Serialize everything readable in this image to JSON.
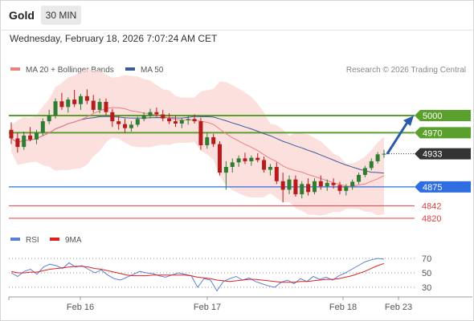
{
  "header": {
    "instrument": "Gold",
    "timeframe": "30 MIN"
  },
  "timestamp": "Wednesday, February 18, 2026 7:07:24 AM CET",
  "legend": {
    "ma20": "MA 20 + Bollinger Bands",
    "ma50": "MA 50",
    "ma20_color": "#f07f7f",
    "ma50_color": "#3a5a99",
    "copyright": "Research © 2026 Trading Central"
  },
  "rsi_legend": {
    "rsi": "RSI",
    "ma9": "9MA",
    "rsi_color": "#5b7fd6",
    "ma9_color": "#e02020"
  },
  "colors": {
    "green": "#5aa02c",
    "blue": "#2f6de0",
    "red": "#e04040",
    "dark": "#333333",
    "candle_up": "#2e7d32",
    "candle_down": "#b71c1c"
  },
  "chart_data": {
    "type": "candlestick",
    "price_axis": {
      "min": 4800,
      "max": 5070
    },
    "levels": [
      {
        "label": "5000",
        "value": 5000,
        "kind": "resistance",
        "color": "#5aa02c"
      },
      {
        "label": "4970",
        "value": 4970,
        "kind": "resistance",
        "color": "#5aa02c"
      },
      {
        "label": "4933",
        "value": 4933,
        "kind": "last",
        "color": "#333333"
      },
      {
        "label": "4875",
        "value": 4875,
        "kind": "pivot",
        "color": "#2f6de0"
      },
      {
        "label": "4842",
        "value": 4842,
        "kind": "support",
        "color": "#e04040"
      },
      {
        "label": "4820",
        "value": 4820,
        "kind": "support",
        "color": "#e04040"
      }
    ],
    "forecast_arrow": {
      "from": 4933,
      "to": 5000
    },
    "x_labels": [
      "Feb 16",
      "Feb 17",
      "Feb 18",
      "Feb 23"
    ],
    "candles": [
      {
        "o": 4975,
        "h": 4988,
        "l": 4950,
        "c": 4960
      },
      {
        "o": 4960,
        "h": 4970,
        "l": 4935,
        "c": 4945
      },
      {
        "o": 4945,
        "h": 4972,
        "l": 4940,
        "c": 4965
      },
      {
        "o": 4965,
        "h": 4980,
        "l": 4955,
        "c": 4958
      },
      {
        "o": 4958,
        "h": 4975,
        "l": 4950,
        "c": 4970
      },
      {
        "o": 4970,
        "h": 4995,
        "l": 4965,
        "c": 4990
      },
      {
        "o": 4990,
        "h": 5010,
        "l": 4985,
        "c": 5000
      },
      {
        "o": 5000,
        "h": 5030,
        "l": 4995,
        "c": 5025
      },
      {
        "o": 5025,
        "h": 5040,
        "l": 5010,
        "c": 5015
      },
      {
        "o": 5015,
        "h": 5032,
        "l": 5005,
        "c": 5028
      },
      {
        "o": 5028,
        "h": 5045,
        "l": 5015,
        "c": 5020
      },
      {
        "o": 5020,
        "h": 5038,
        "l": 5010,
        "c": 5034
      },
      {
        "o": 5034,
        "h": 5046,
        "l": 5020,
        "c": 5026
      },
      {
        "o": 5026,
        "h": 5036,
        "l": 5005,
        "c": 5010
      },
      {
        "o": 5010,
        "h": 5030,
        "l": 5004,
        "c": 5024
      },
      {
        "o": 5024,
        "h": 5030,
        "l": 5000,
        "c": 5006
      },
      {
        "o": 5006,
        "h": 5012,
        "l": 4980,
        "c": 4990
      },
      {
        "o": 4990,
        "h": 5000,
        "l": 4975,
        "c": 4985
      },
      {
        "o": 4985,
        "h": 4995,
        "l": 4970,
        "c": 4978
      },
      {
        "o": 4978,
        "h": 4990,
        "l": 4972,
        "c": 4984
      },
      {
        "o": 4984,
        "h": 4998,
        "l": 4980,
        "c": 4994
      },
      {
        "o": 4994,
        "h": 5006,
        "l": 4990,
        "c": 5000
      },
      {
        "o": 5000,
        "h": 5012,
        "l": 4995,
        "c": 5006
      },
      {
        "o": 5006,
        "h": 5014,
        "l": 4998,
        "c": 5002
      },
      {
        "o": 5002,
        "h": 5010,
        "l": 4990,
        "c": 4995
      },
      {
        "o": 4995,
        "h": 5004,
        "l": 4985,
        "c": 4990
      },
      {
        "o": 4990,
        "h": 5000,
        "l": 4980,
        "c": 4986
      },
      {
        "o": 4986,
        "h": 4996,
        "l": 4978,
        "c": 4992
      },
      {
        "o": 4992,
        "h": 5000,
        "l": 4984,
        "c": 4994
      },
      {
        "o": 4994,
        "h": 5002,
        "l": 4986,
        "c": 4990
      },
      {
        "o": 4990,
        "h": 4996,
        "l": 4940,
        "c": 4948
      },
      {
        "o": 4948,
        "h": 4970,
        "l": 4942,
        "c": 4962
      },
      {
        "o": 4962,
        "h": 4968,
        "l": 4945,
        "c": 4950
      },
      {
        "o": 4950,
        "h": 4955,
        "l": 4895,
        "c": 4900
      },
      {
        "o": 4900,
        "h": 4920,
        "l": 4870,
        "c": 4910
      },
      {
        "o": 4910,
        "h": 4925,
        "l": 4900,
        "c": 4918
      },
      {
        "o": 4918,
        "h": 4930,
        "l": 4910,
        "c": 4925
      },
      {
        "o": 4925,
        "h": 4935,
        "l": 4915,
        "c": 4920
      },
      {
        "o": 4920,
        "h": 4930,
        "l": 4912,
        "c": 4926
      },
      {
        "o": 4926,
        "h": 4934,
        "l": 4918,
        "c": 4922
      },
      {
        "o": 4922,
        "h": 4928,
        "l": 4900,
        "c": 4905
      },
      {
        "o": 4905,
        "h": 4915,
        "l": 4895,
        "c": 4910
      },
      {
        "o": 4910,
        "h": 4918,
        "l": 4880,
        "c": 4885
      },
      {
        "o": 4885,
        "h": 4900,
        "l": 4848,
        "c": 4870
      },
      {
        "o": 4870,
        "h": 4895,
        "l": 4862,
        "c": 4888
      },
      {
        "o": 4888,
        "h": 4895,
        "l": 4858,
        "c": 4862
      },
      {
        "o": 4862,
        "h": 4885,
        "l": 4855,
        "c": 4880
      },
      {
        "o": 4880,
        "h": 4890,
        "l": 4860,
        "c": 4866
      },
      {
        "o": 4866,
        "h": 4890,
        "l": 4862,
        "c": 4885
      },
      {
        "o": 4885,
        "h": 4895,
        "l": 4870,
        "c": 4876
      },
      {
        "o": 4876,
        "h": 4888,
        "l": 4868,
        "c": 4882
      },
      {
        "o": 4882,
        "h": 4890,
        "l": 4872,
        "c": 4878
      },
      {
        "o": 4878,
        "h": 4884,
        "l": 4862,
        "c": 4868
      },
      {
        "o": 4868,
        "h": 4880,
        "l": 4860,
        "c": 4876
      },
      {
        "o": 4876,
        "h": 4888,
        "l": 4870,
        "c": 4884
      },
      {
        "o": 4884,
        "h": 4900,
        "l": 4880,
        "c": 4896
      },
      {
        "o": 4896,
        "h": 4912,
        "l": 4892,
        "c": 4908
      },
      {
        "o": 4908,
        "h": 4925,
        "l": 4904,
        "c": 4920
      },
      {
        "o": 4920,
        "h": 4936,
        "l": 4916,
        "c": 4932
      },
      {
        "o": 4932,
        "h": 4940,
        "l": 4926,
        "c": 4933
      }
    ],
    "rsi": {
      "axis": {
        "min": 0,
        "max": 100,
        "ticks": [
          30,
          50,
          70
        ]
      },
      "rsi_values": [
        50,
        45,
        52,
        55,
        48,
        58,
        62,
        60,
        56,
        64,
        58,
        60,
        55,
        50,
        54,
        47,
        42,
        40,
        44,
        48,
        52,
        50,
        49,
        46,
        44,
        47,
        50,
        48,
        46,
        30,
        42,
        40,
        25,
        38,
        42,
        45,
        40,
        43,
        38,
        35,
        32,
        30,
        37,
        40,
        35,
        42,
        38,
        45,
        41,
        44,
        40,
        46,
        50,
        55,
        60,
        65,
        68,
        70,
        69
      ],
      "ma9_values": [
        52,
        50,
        50,
        51,
        51,
        53,
        55,
        56,
        57,
        58,
        59,
        59,
        58,
        56,
        55,
        53,
        51,
        49,
        47,
        46,
        46,
        46,
        47,
        47,
        47,
        47,
        47,
        47,
        46,
        44,
        43,
        42,
        40,
        39,
        38,
        39,
        40,
        41,
        41,
        40,
        39,
        38,
        37,
        37,
        37,
        38,
        38,
        39,
        40,
        41,
        41,
        42,
        44,
        46,
        49,
        52,
        56,
        60,
        63
      ]
    }
  }
}
